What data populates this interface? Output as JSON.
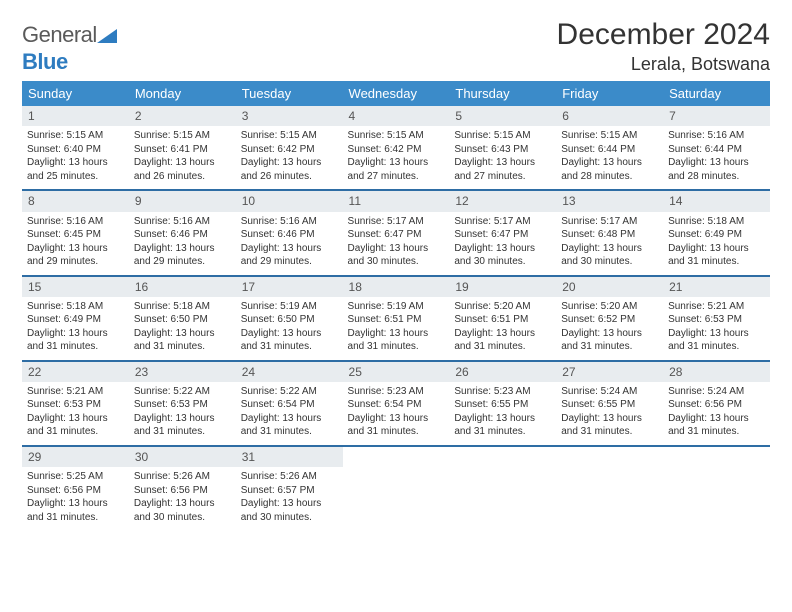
{
  "brand": {
    "general": "General",
    "blue": "Blue"
  },
  "title": "December 2024",
  "location": "Lerala, Botswana",
  "colors": {
    "header_bg": "#3b8bc9",
    "header_text": "#ffffff",
    "daynum_bg": "#e8ecef",
    "row_border": "#2e6da4",
    "logo_gray": "#5a5a5a",
    "logo_blue": "#2e7cc0"
  },
  "typography": {
    "title_fontsize": 30,
    "location_fontsize": 18,
    "day_header_fontsize": 13,
    "daynum_fontsize": 12,
    "cell_fontsize": 10
  },
  "day_headers": [
    "Sunday",
    "Monday",
    "Tuesday",
    "Wednesday",
    "Thursday",
    "Friday",
    "Saturday"
  ],
  "weeks": [
    {
      "nums": [
        "1",
        "2",
        "3",
        "4",
        "5",
        "6",
        "7"
      ],
      "cells": [
        "Sunrise: 5:15 AM\nSunset: 6:40 PM\nDaylight: 13 hours and 25 minutes.",
        "Sunrise: 5:15 AM\nSunset: 6:41 PM\nDaylight: 13 hours and 26 minutes.",
        "Sunrise: 5:15 AM\nSunset: 6:42 PM\nDaylight: 13 hours and 26 minutes.",
        "Sunrise: 5:15 AM\nSunset: 6:42 PM\nDaylight: 13 hours and 27 minutes.",
        "Sunrise: 5:15 AM\nSunset: 6:43 PM\nDaylight: 13 hours and 27 minutes.",
        "Sunrise: 5:15 AM\nSunset: 6:44 PM\nDaylight: 13 hours and 28 minutes.",
        "Sunrise: 5:16 AM\nSunset: 6:44 PM\nDaylight: 13 hours and 28 minutes."
      ]
    },
    {
      "nums": [
        "8",
        "9",
        "10",
        "11",
        "12",
        "13",
        "14"
      ],
      "cells": [
        "Sunrise: 5:16 AM\nSunset: 6:45 PM\nDaylight: 13 hours and 29 minutes.",
        "Sunrise: 5:16 AM\nSunset: 6:46 PM\nDaylight: 13 hours and 29 minutes.",
        "Sunrise: 5:16 AM\nSunset: 6:46 PM\nDaylight: 13 hours and 29 minutes.",
        "Sunrise: 5:17 AM\nSunset: 6:47 PM\nDaylight: 13 hours and 30 minutes.",
        "Sunrise: 5:17 AM\nSunset: 6:47 PM\nDaylight: 13 hours and 30 minutes.",
        "Sunrise: 5:17 AM\nSunset: 6:48 PM\nDaylight: 13 hours and 30 minutes.",
        "Sunrise: 5:18 AM\nSunset: 6:49 PM\nDaylight: 13 hours and 31 minutes."
      ]
    },
    {
      "nums": [
        "15",
        "16",
        "17",
        "18",
        "19",
        "20",
        "21"
      ],
      "cells": [
        "Sunrise: 5:18 AM\nSunset: 6:49 PM\nDaylight: 13 hours and 31 minutes.",
        "Sunrise: 5:18 AM\nSunset: 6:50 PM\nDaylight: 13 hours and 31 minutes.",
        "Sunrise: 5:19 AM\nSunset: 6:50 PM\nDaylight: 13 hours and 31 minutes.",
        "Sunrise: 5:19 AM\nSunset: 6:51 PM\nDaylight: 13 hours and 31 minutes.",
        "Sunrise: 5:20 AM\nSunset: 6:51 PM\nDaylight: 13 hours and 31 minutes.",
        "Sunrise: 5:20 AM\nSunset: 6:52 PM\nDaylight: 13 hours and 31 minutes.",
        "Sunrise: 5:21 AM\nSunset: 6:53 PM\nDaylight: 13 hours and 31 minutes."
      ]
    },
    {
      "nums": [
        "22",
        "23",
        "24",
        "25",
        "26",
        "27",
        "28"
      ],
      "cells": [
        "Sunrise: 5:21 AM\nSunset: 6:53 PM\nDaylight: 13 hours and 31 minutes.",
        "Sunrise: 5:22 AM\nSunset: 6:53 PM\nDaylight: 13 hours and 31 minutes.",
        "Sunrise: 5:22 AM\nSunset: 6:54 PM\nDaylight: 13 hours and 31 minutes.",
        "Sunrise: 5:23 AM\nSunset: 6:54 PM\nDaylight: 13 hours and 31 minutes.",
        "Sunrise: 5:23 AM\nSunset: 6:55 PM\nDaylight: 13 hours and 31 minutes.",
        "Sunrise: 5:24 AM\nSunset: 6:55 PM\nDaylight: 13 hours and 31 minutes.",
        "Sunrise: 5:24 AM\nSunset: 6:56 PM\nDaylight: 13 hours and 31 minutes."
      ]
    },
    {
      "nums": [
        "29",
        "30",
        "31",
        "",
        "",
        "",
        ""
      ],
      "cells": [
        "Sunrise: 5:25 AM\nSunset: 6:56 PM\nDaylight: 13 hours and 31 minutes.",
        "Sunrise: 5:26 AM\nSunset: 6:56 PM\nDaylight: 13 hours and 30 minutes.",
        "Sunrise: 5:26 AM\nSunset: 6:57 PM\nDaylight: 13 hours and 30 minutes.",
        "",
        "",
        "",
        ""
      ]
    }
  ]
}
